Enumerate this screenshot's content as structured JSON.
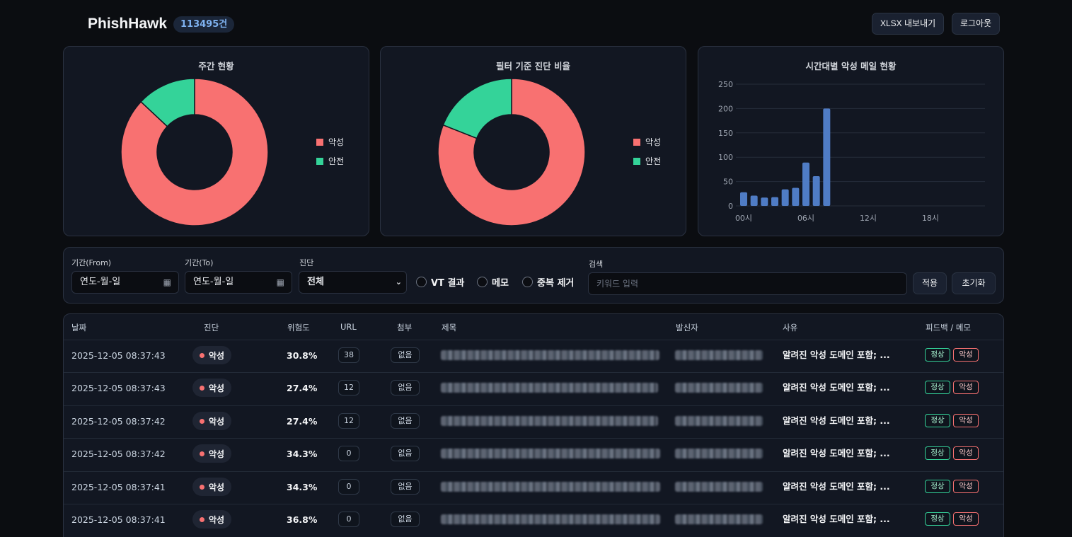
{
  "header": {
    "logo": "PhishHawk",
    "count": "113495건",
    "export_label": "XLSX 내보내기",
    "logout_label": "로그아웃"
  },
  "charts": {
    "weekly": {
      "title": "주간 현황",
      "legend": [
        "악성",
        "안전"
      ]
    },
    "filtered": {
      "title": "필터 기준 진단 비율",
      "legend": [
        "악성",
        "안전"
      ]
    },
    "hourly": {
      "title": "시간대별 악성 메일 현황"
    }
  },
  "colors": {
    "malicious": "#f87171",
    "safe": "#34d399",
    "bar": "#4f7cc5"
  },
  "chart_data": [
    {
      "type": "pie",
      "title": "주간 현황",
      "labels": [
        "악성",
        "안전"
      ],
      "values": [
        87,
        13
      ],
      "donut": true,
      "legend": "right"
    },
    {
      "type": "pie",
      "title": "필터 기준 진단 비율",
      "labels": [
        "악성",
        "안전"
      ],
      "values": [
        81,
        19
      ],
      "donut": true,
      "legend": "right"
    },
    {
      "type": "bar",
      "title": "시간대별 악성 메일 현황",
      "categories": [
        "00시",
        "01시",
        "02시",
        "03시",
        "04시",
        "05시",
        "06시",
        "07시",
        "08시",
        "09시",
        "10시",
        "11시",
        "12시",
        "13시",
        "14시",
        "15시",
        "16시",
        "17시",
        "18시",
        "19시",
        "20시",
        "21시",
        "22시",
        "23시"
      ],
      "x_tick_labels": [
        "00시",
        "06시",
        "12시",
        "18시"
      ],
      "values": [
        28,
        21,
        17,
        18,
        34,
        37,
        89,
        61,
        200,
        0,
        0,
        0,
        0,
        0,
        0,
        0,
        0,
        0,
        0,
        0,
        0,
        0,
        0,
        0
      ],
      "y_ticks": [
        0,
        50,
        100,
        150,
        200,
        250
      ],
      "ylim": [
        0,
        250
      ],
      "grid": true
    }
  ],
  "filters": {
    "from_label": "기간(From)",
    "from_value": "연도-월-일",
    "to_label": "기간(To)",
    "to_value": "연도-월-일",
    "diag_label": "진단",
    "diag_value": "전체",
    "radio_vt": "VT 결과",
    "radio_memo": "메모",
    "radio_dedup": "중복 제거",
    "search_label": "검색",
    "search_placeholder": "키워드 입력",
    "apply_label": "적용",
    "reset_label": "초기화"
  },
  "table": {
    "headers": {
      "date": "날짜",
      "diagnosis": "진단",
      "risk": "위험도",
      "url": "URL",
      "attach": "첨부",
      "subject": "제목",
      "sender": "발신자",
      "reason": "사유",
      "feedback": "피드백 / 메모"
    },
    "feedback_ok": "정상",
    "feedback_bad": "악성",
    "rows": [
      {
        "date": "2025-12-05 08:37:43",
        "diag": "악성",
        "risk": "30.8%",
        "url": "38",
        "attach": "없음",
        "reason": "알려진 악성 도메인 포함; ..."
      },
      {
        "date": "2025-12-05 08:37:43",
        "diag": "악성",
        "risk": "27.4%",
        "url": "12",
        "attach": "없음",
        "reason": "알려진 악성 도메인 포함; ..."
      },
      {
        "date": "2025-12-05 08:37:42",
        "diag": "악성",
        "risk": "27.4%",
        "url": "12",
        "attach": "없음",
        "reason": "알려진 악성 도메인 포함; ..."
      },
      {
        "date": "2025-12-05 08:37:42",
        "diag": "악성",
        "risk": "34.3%",
        "url": "0",
        "attach": "없음",
        "reason": "알려진 악성 도메인 포함; ..."
      },
      {
        "date": "2025-12-05 08:37:41",
        "diag": "악성",
        "risk": "34.3%",
        "url": "0",
        "attach": "없음",
        "reason": "알려진 악성 도메인 포함; ..."
      },
      {
        "date": "2025-12-05 08:37:41",
        "diag": "악성",
        "risk": "36.8%",
        "url": "0",
        "attach": "없음",
        "reason": "알려진 악성 도메인 포함; ..."
      }
    ]
  }
}
